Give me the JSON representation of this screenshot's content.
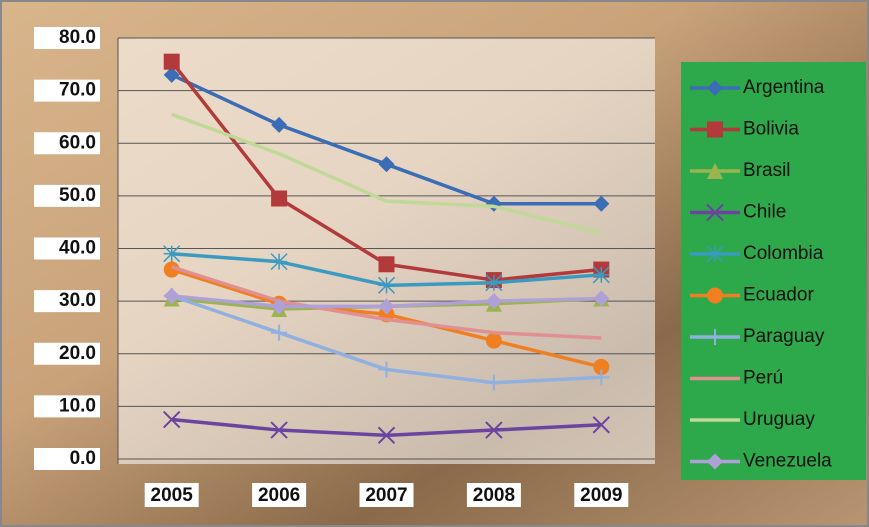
{
  "chart_data": {
    "type": "line",
    "categories": [
      "2005",
      "2006",
      "2007",
      "2008",
      "2009"
    ],
    "ylim": [
      0,
      80
    ],
    "yticks": [
      {
        "value": 0,
        "label": "0.0"
      },
      {
        "value": 10,
        "label": "10.0"
      },
      {
        "value": 20,
        "label": "20.0"
      },
      {
        "value": 30,
        "label": "30.0"
      },
      {
        "value": 40,
        "label": "40.0"
      },
      {
        "value": 50,
        "label": "50.0"
      },
      {
        "value": 60,
        "label": "60.0"
      },
      {
        "value": 70,
        "label": "70.0"
      },
      {
        "value": 80,
        "label": "80.0"
      }
    ],
    "grid": true,
    "legend": "right",
    "series": [
      {
        "name": "Argentina",
        "color": "#3a6db5",
        "marker": "diamond",
        "values": [
          73,
          63.5,
          56,
          48.5,
          48.5
        ]
      },
      {
        "name": "Bolivia",
        "color": "#b23a3a",
        "marker": "square",
        "values": [
          75.5,
          49.5,
          37,
          34,
          36
        ]
      },
      {
        "name": "Brasil",
        "color": "#9bb450",
        "marker": "triangle",
        "values": [
          30.5,
          28.5,
          29,
          29.5,
          30.5
        ]
      },
      {
        "name": "Chile",
        "color": "#6c44a0",
        "marker": "x",
        "values": [
          7.5,
          5.5,
          4.5,
          5.5,
          6.5
        ]
      },
      {
        "name": "Colombia",
        "color": "#3a9ac0",
        "marker": "star",
        "values": [
          39,
          37.5,
          33,
          33.5,
          35
        ]
      },
      {
        "name": "Ecuador",
        "color": "#f07f22",
        "marker": "circle",
        "values": [
          36,
          29.5,
          27.5,
          22.5,
          17.5
        ]
      },
      {
        "name": "Paraguay",
        "color": "#90b0e0",
        "marker": "plus",
        "values": [
          31,
          24,
          17,
          14.5,
          15.5
        ]
      },
      {
        "name": "Perú",
        "color": "#e09090",
        "marker": "none",
        "values": [
          36.5,
          30,
          26.5,
          24,
          23
        ]
      },
      {
        "name": "Uruguay",
        "color": "#c0d898",
        "marker": "none",
        "values": [
          65.5,
          58,
          49,
          48,
          43
        ]
      },
      {
        "name": "Venezuela",
        "color": "#b0a0d8",
        "marker": "diamond",
        "values": [
          31,
          29,
          29,
          30,
          30.5
        ]
      }
    ]
  }
}
